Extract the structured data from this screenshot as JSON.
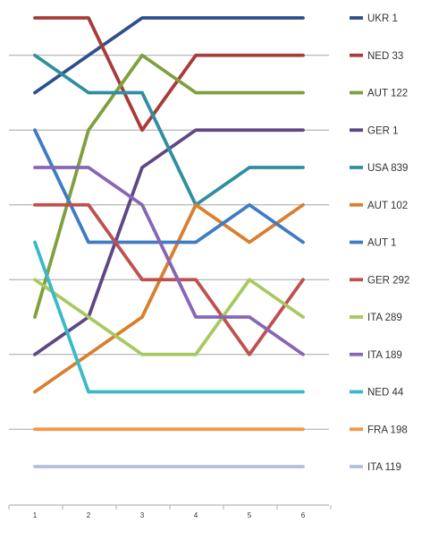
{
  "chart_data": {
    "type": "line",
    "title": "",
    "xlabel": "",
    "ylabel": "",
    "x": [
      "1",
      "2",
      "3",
      "4",
      "5",
      "6"
    ],
    "ylim": [
      1,
      13
    ],
    "y_inverted": true,
    "grid": true,
    "legend_position": "right",
    "series": [
      {
        "name": "UKR 1",
        "color": "#2E4F8C",
        "values": [
          3,
          2,
          1,
          1,
          1,
          1
        ]
      },
      {
        "name": "NED 33",
        "color": "#A83C3A",
        "values": [
          1,
          1,
          4,
          2,
          2,
          2
        ]
      },
      {
        "name": "AUT 122",
        "color": "#7FA03C",
        "values": [
          9,
          4,
          2,
          3,
          3,
          3
        ]
      },
      {
        "name": "GER 1",
        "color": "#5E4785",
        "values": [
          10,
          9,
          5,
          4,
          4,
          4
        ]
      },
      {
        "name": "USA 839",
        "color": "#2F8FA0",
        "values": [
          2,
          3,
          3,
          6,
          5,
          5
        ]
      },
      {
        "name": "AUT 102",
        "color": "#D97F2E",
        "values": [
          11,
          10,
          9,
          6,
          7,
          6
        ]
      },
      {
        "name": "AUT 1",
        "color": "#3F7CC4",
        "values": [
          4,
          7,
          7,
          7,
          6,
          7
        ]
      },
      {
        "name": "GER 292",
        "color": "#C0504D",
        "values": [
          6,
          6,
          8,
          8,
          10,
          8
        ]
      },
      {
        "name": "ITA 289",
        "color": "#A9C860",
        "values": [
          8,
          9,
          10,
          10,
          8,
          9
        ]
      },
      {
        "name": "ITA 189",
        "color": "#8667B4",
        "values": [
          5,
          5,
          6,
          9,
          9,
          10
        ]
      },
      {
        "name": "NED 44",
        "color": "#39B9C9",
        "values": [
          7,
          11,
          11,
          11,
          11,
          11
        ]
      },
      {
        "name": "FRA 198",
        "color": "#F79646",
        "values": [
          12,
          12,
          12,
          12,
          12,
          12
        ]
      },
      {
        "name": "ITA 119",
        "color": "#B3BFDD",
        "values": [
          13,
          13,
          13,
          13,
          13,
          13
        ]
      }
    ]
  }
}
